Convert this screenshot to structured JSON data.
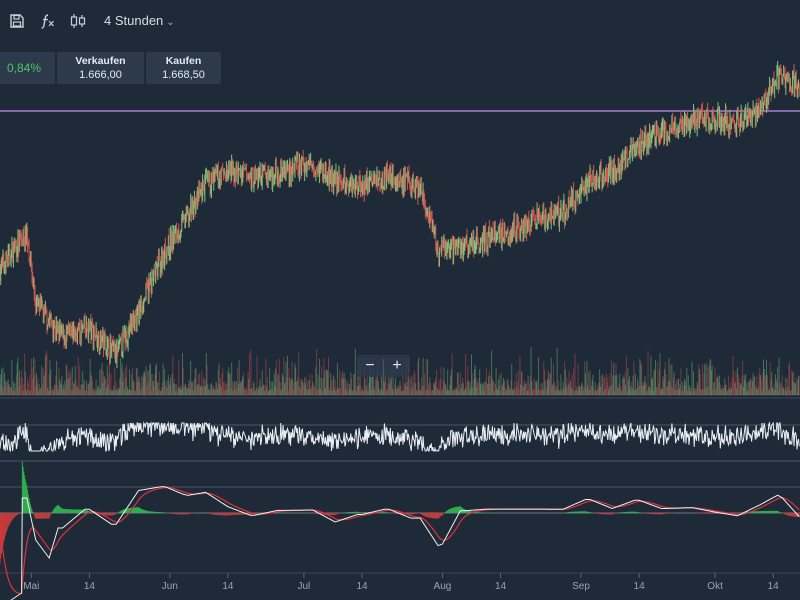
{
  "toolbar": {
    "icons": [
      "save-icon",
      "function-icon",
      "candlestick-icon"
    ],
    "interval_label": "4 Stunden"
  },
  "quote": {
    "change": "0,84%",
    "sell_label": "Verkaufen",
    "sell_value": "1.666,00",
    "buy_label": "Kaufen",
    "buy_value": "1.668,50"
  },
  "zoom": {
    "minus": "−",
    "plus": "+"
  },
  "colors": {
    "background": "#1e2a38",
    "up_candle": "#7bc67e",
    "down_candle": "#d9534f",
    "horizontal_line": "#c58cf0",
    "oscillator_line": "#e9eef3",
    "macd_line": "#f2f2f2",
    "signal_line": "#e0323b",
    "positive_change": "#4fc46a"
  },
  "chart_data": {
    "type": "candlestick",
    "price_anchors": [
      [
        "Apr 24",
        1590
      ],
      [
        "Apr 30",
        1610
      ],
      [
        "May 2",
        1570
      ],
      [
        "May 8",
        1550
      ],
      [
        "May 14",
        1555
      ],
      [
        "May 20",
        1540
      ],
      [
        "May 25",
        1565
      ],
      [
        "May 31",
        1600
      ],
      [
        "Jun 4",
        1615
      ],
      [
        "Jun 9",
        1638
      ],
      [
        "Jun 14",
        1645
      ],
      [
        "Jun 20",
        1642
      ],
      [
        "Jun 27",
        1646
      ],
      [
        "Jul 3",
        1650
      ],
      [
        "Jul 8",
        1640
      ],
      [
        "Jul 14",
        1638
      ],
      [
        "Jul 20",
        1643
      ],
      [
        "Jul 27",
        1635
      ],
      [
        "Jul 31",
        1600
      ],
      [
        "Aug 6",
        1603
      ],
      [
        "Aug 14",
        1610
      ],
      [
        "Aug 22",
        1617
      ],
      [
        "Aug 28",
        1622
      ],
      [
        "Sep 3",
        1640
      ],
      [
        "Sep 8",
        1645
      ],
      [
        "Sep 14",
        1662
      ],
      [
        "Sep 20",
        1668
      ],
      [
        "Sep 26",
        1675
      ],
      [
        "Oct 1",
        1676
      ],
      [
        "Oct 6",
        1673
      ],
      [
        "Oct 11",
        1682
      ],
      [
        "Oct 15",
        1700
      ],
      [
        "Oct 20",
        1695
      ]
    ],
    "horizontal_line": 1680,
    "x_ticks": [
      {
        "label": "Mai",
        "date": "May 1"
      },
      {
        "label": "14",
        "date": "May 14"
      },
      {
        "label": "Jun",
        "date": "Jun 1"
      },
      {
        "label": "14",
        "date": "Jun 14"
      },
      {
        "label": "Jul",
        "date": "Jul 1"
      },
      {
        "label": "14",
        "date": "Jul 14"
      },
      {
        "label": "Aug",
        "date": "Aug 1"
      },
      {
        "label": "14",
        "date": "Aug 14"
      },
      {
        "label": "Sep",
        "date": "Sep 1"
      },
      {
        "label": "14",
        "date": "Sep 14"
      },
      {
        "label": "Okt",
        "date": "Oct 1"
      },
      {
        "label": "14",
        "date": "Oct 14"
      }
    ],
    "x_range": [
      "Apr 24",
      "Oct 20"
    ],
    "y_range": [
      1520,
      1715
    ],
    "panels": [
      "price",
      "volume",
      "oscillator",
      "macd"
    ],
    "legend": "none"
  }
}
